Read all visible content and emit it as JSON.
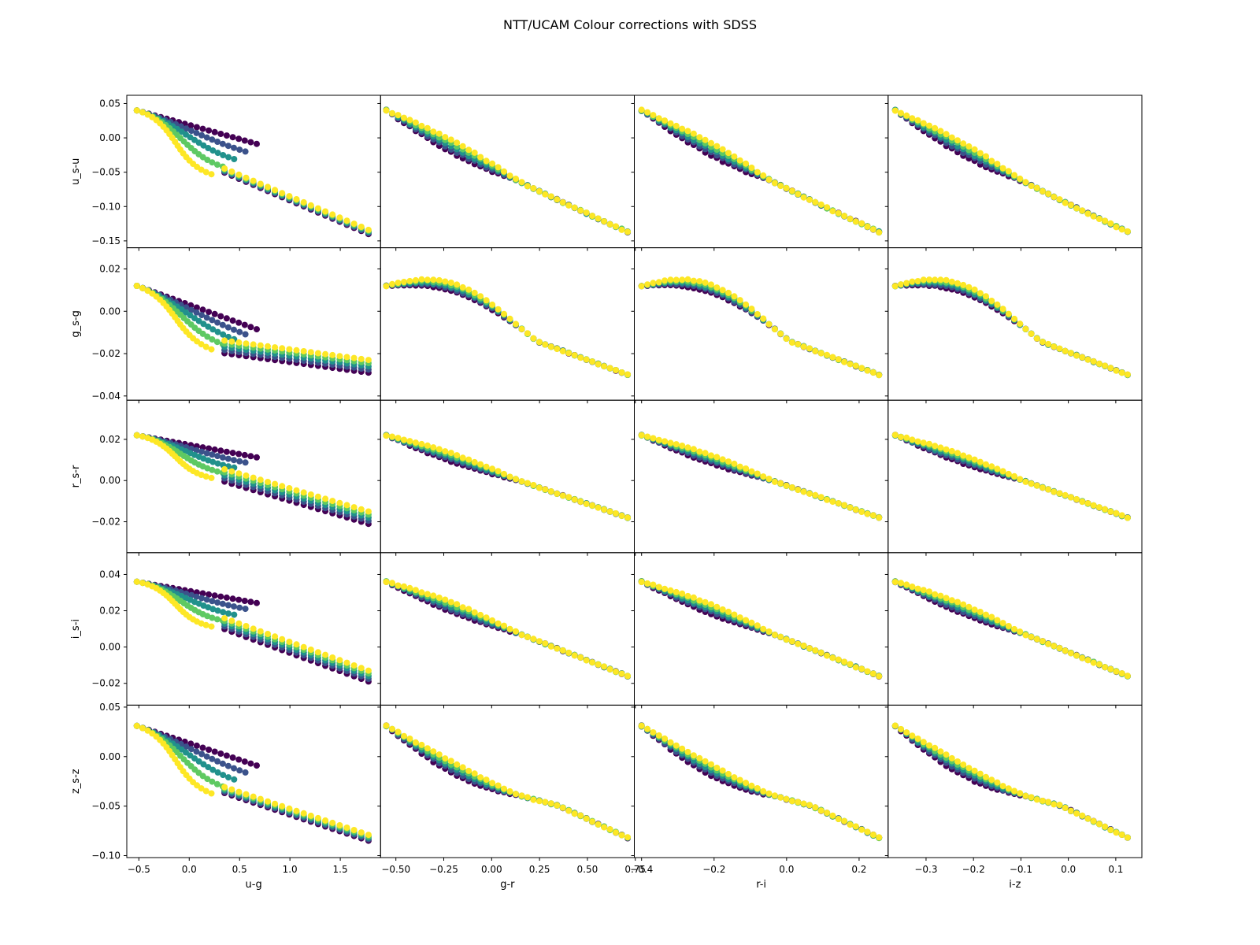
{
  "title": "NTT/UCAM Colour corrections with SDSS",
  "chart_data": {
    "type": "scatter",
    "layout": "5x4 grid, shared x per column, shared y per row",
    "colormap": [
      "#440154",
      "#3b528b",
      "#21918c",
      "#5ec962",
      "#fde725"
    ],
    "columns": [
      {
        "xlabel": "u-g",
        "xlim": [
          -0.62,
          1.9
        ],
        "xticks": [
          -0.5,
          0.0,
          0.5,
          1.0,
          1.5
        ],
        "xticklabels": [
          "−0.5",
          "0.0",
          "0.5",
          "1.0",
          "1.5"
        ],
        "xmin": -0.52,
        "xmax": 1.78
      },
      {
        "xlabel": "g-r",
        "xlim": [
          -0.58,
          0.745
        ],
        "xticks": [
          -0.5,
          -0.25,
          0.0,
          0.25,
          0.5,
          0.75
        ],
        "xticklabels": [
          "−0.50",
          "−0.25",
          "0.00",
          "0.25",
          "0.50",
          "0.75"
        ],
        "xmin": -0.55,
        "xmax": 0.71
      },
      {
        "xlabel": "r-i",
        "xlim": [
          -0.42,
          0.28
        ],
        "xticks": [
          -0.4,
          -0.2,
          0.0,
          0.2
        ],
        "xticklabels": [
          "−0.4",
          "−0.2",
          "0.0",
          "0.2"
        ],
        "xmin": -0.4,
        "xmax": 0.255
      },
      {
        "xlabel": "i-z",
        "xlim": [
          -0.38,
          0.155
        ],
        "xticks": [
          -0.3,
          -0.2,
          -0.1,
          0.0,
          0.1
        ],
        "xticklabels": [
          "−0.3",
          "−0.2",
          "−0.1",
          "0.0",
          "0.1"
        ],
        "xmin": -0.365,
        "xmax": 0.125
      }
    ],
    "rows": [
      {
        "ylabel": "u_s-u",
        "ylim": [
          -0.16,
          0.062
        ],
        "yticks": [
          0.05,
          0.0,
          -0.05,
          -0.1,
          -0.15
        ],
        "yticklabels": [
          "0.05",
          "0.00",
          "−0.05",
          "−0.10",
          "−0.15"
        ],
        "ystart": 0.04,
        "yend": -0.137,
        "first_col_knee": [
          0.7,
          -0.01
        ]
      },
      {
        "ylabel": "g_s-g",
        "ylim": [
          -0.042,
          0.03
        ],
        "yticks": [
          0.02,
          0.0,
          -0.02,
          -0.04
        ],
        "yticklabels": [
          "0.02",
          "0.00",
          "−0.02",
          "−0.04"
        ],
        "ystart": 0.012,
        "yend": -0.026,
        "first_col_knee": [
          0.7,
          -0.009
        ]
      },
      {
        "ylabel": "r_s-r",
        "ylim": [
          -0.035,
          0.039
        ],
        "yticks": [
          0.02,
          0.0,
          -0.02
        ],
        "yticklabels": [
          "0.02",
          "0.00",
          "−0.02"
        ],
        "ystart": 0.022,
        "yend": -0.018,
        "first_col_knee": [
          0.7,
          0.011
        ]
      },
      {
        "ylabel": "i_s-i",
        "ylim": [
          -0.032,
          0.052
        ],
        "yticks": [
          0.04,
          0.02,
          0.0,
          -0.02
        ],
        "yticklabels": [
          "0.04",
          "0.02",
          "0.00",
          "−0.02"
        ],
        "ystart": 0.036,
        "yend": -0.016,
        "first_col_knee": [
          0.7,
          0.024
        ]
      },
      {
        "ylabel": "z_s-z",
        "ylim": [
          -0.102,
          0.052
        ],
        "yticks": [
          0.05,
          0.0,
          -0.05,
          -0.1
        ],
        "yticklabels": [
          "0.05",
          "0.00",
          "−0.05",
          "−0.10"
        ],
        "ystart": 0.031,
        "yend": -0.082,
        "first_col_knee": [
          0.7,
          -0.01
        ]
      }
    ]
  }
}
